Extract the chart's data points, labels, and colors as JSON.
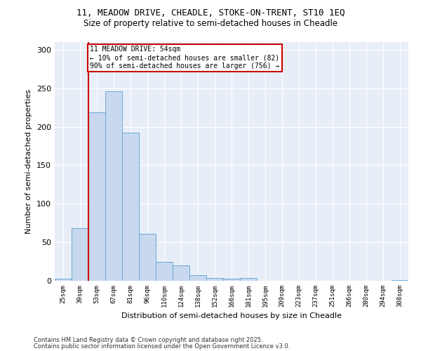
{
  "title_line1": "11, MEADOW DRIVE, CHEADLE, STOKE-ON-TRENT, ST10 1EQ",
  "title_line2": "Size of property relative to semi-detached houses in Cheadle",
  "xlabel": "Distribution of semi-detached houses by size in Cheadle",
  "ylabel": "Number of semi-detached properties",
  "categories": [
    "25sqm",
    "39sqm",
    "53sqm",
    "67sqm",
    "81sqm",
    "96sqm",
    "110sqm",
    "124sqm",
    "138sqm",
    "152sqm",
    "166sqm",
    "181sqm",
    "195sqm",
    "209sqm",
    "223sqm",
    "237sqm",
    "251sqm",
    "266sqm",
    "280sqm",
    "294sqm",
    "308sqm"
  ],
  "values": [
    3,
    68,
    219,
    246,
    192,
    61,
    25,
    20,
    7,
    4,
    3,
    4,
    0,
    0,
    0,
    0,
    0,
    0,
    0,
    0,
    1
  ],
  "bar_color": "#c8d8ee",
  "bar_edge_color": "#6aaad4",
  "vline_x": 1.5,
  "vline_color": "#cc0000",
  "annotation_text": "11 MEADOW DRIVE: 54sqm\n← 10% of semi-detached houses are smaller (82)\n90% of semi-detached houses are larger (756) →",
  "ylim": [
    0,
    310
  ],
  "yticks": [
    0,
    50,
    100,
    150,
    200,
    250,
    300
  ],
  "background_color": "#e8eef8",
  "footer_line1": "Contains HM Land Registry data © Crown copyright and database right 2025.",
  "footer_line2": "Contains public sector information licensed under the Open Government Licence v3.0."
}
